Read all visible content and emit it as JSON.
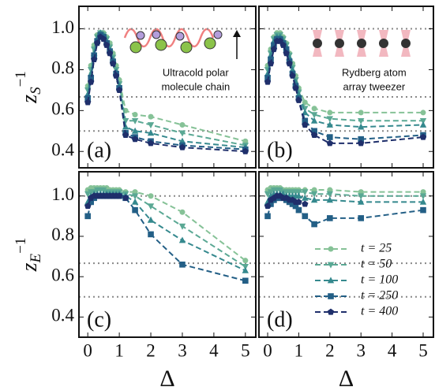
{
  "chart_data": [
    {
      "type": "line",
      "panel_label": "(a)",
      "ylabel": {
        "base": "z",
        "sub": "S",
        "sup": "−1"
      },
      "annotation": [
        "Ultracold polar",
        "molecule chain"
      ],
      "x": [
        0,
        0.1,
        0.2,
        0.3,
        0.4,
        0.5,
        0.6,
        0.7,
        0.8,
        0.9,
        1.0,
        1.2,
        1.5,
        2,
        3,
        5
      ],
      "xlim": [
        -0.28,
        5.33
      ],
      "xticks": [
        0,
        1,
        2,
        3,
        4,
        5
      ],
      "ylim": [
        0.32,
        1.11
      ],
      "yticks": [
        0.4,
        0.6,
        0.8,
        {
          "value": 1,
          "label": "1.0"
        }
      ],
      "hlines": [
        1,
        0.6667,
        0.5
      ],
      "series": [
        {
          "color": "#86c297",
          "marker": "circle",
          "values": [
            0.72,
            0.82,
            0.92,
            0.97,
            0.98,
            0.98,
            0.96,
            0.93,
            0.88,
            0.82,
            0.75,
            0.6,
            0.58,
            0.57,
            0.53,
            0.45
          ]
        },
        {
          "color": "#5aa894",
          "marker": "triangle-down",
          "values": [
            0.7,
            0.8,
            0.9,
            0.96,
            0.98,
            0.97,
            0.95,
            0.91,
            0.86,
            0.8,
            0.73,
            0.55,
            0.55,
            0.53,
            0.49,
            0.43
          ]
        },
        {
          "color": "#35898e",
          "marker": "triangle-up",
          "values": [
            0.68,
            0.78,
            0.88,
            0.95,
            0.98,
            0.97,
            0.94,
            0.9,
            0.85,
            0.79,
            0.72,
            0.52,
            0.5,
            0.49,
            0.45,
            0.42
          ]
        },
        {
          "color": "#235f86",
          "marker": "square",
          "values": [
            0.66,
            0.76,
            0.87,
            0.94,
            0.97,
            0.96,
            0.93,
            0.89,
            0.84,
            0.78,
            0.71,
            0.49,
            0.47,
            0.45,
            0.43,
            0.41
          ]
        },
        {
          "color": "#1f2f6b",
          "marker": "pentagon",
          "values": [
            0.64,
            0.74,
            0.85,
            0.93,
            0.96,
            0.95,
            0.92,
            0.88,
            0.83,
            0.77,
            0.7,
            0.48,
            0.46,
            0.44,
            0.42,
            0.4
          ]
        }
      ]
    },
    {
      "type": "line",
      "panel_label": "(b)",
      "annotation": [
        "Rydberg atom",
        "array tweezer"
      ],
      "x": [
        0,
        0.1,
        0.2,
        0.3,
        0.4,
        0.5,
        0.6,
        0.7,
        0.8,
        0.9,
        1.0,
        1.2,
        1.5,
        2,
        3,
        5
      ],
      "xlim": [
        -0.28,
        5.33
      ],
      "xticks": [
        0,
        1,
        2,
        3,
        4,
        5
      ],
      "ylim": [
        0.32,
        1.11
      ],
      "yticks": [
        0.4,
        0.6,
        0.8,
        1
      ],
      "hlines": [
        1,
        0.6667,
        0.5
      ],
      "series": [
        {
          "color": "#86c297",
          "marker": "circle",
          "values": [
            0.82,
            0.9,
            0.96,
            0.98,
            0.98,
            0.96,
            0.93,
            0.88,
            0.83,
            0.77,
            0.71,
            0.64,
            0.61,
            0.59,
            0.59,
            0.59
          ]
        },
        {
          "color": "#5aa894",
          "marker": "triangle-down",
          "values": [
            0.8,
            0.88,
            0.95,
            0.97,
            0.97,
            0.95,
            0.92,
            0.87,
            0.81,
            0.75,
            0.69,
            0.61,
            0.58,
            0.56,
            0.55,
            0.55
          ]
        },
        {
          "color": "#35898e",
          "marker": "triangle-up",
          "values": [
            0.78,
            0.87,
            0.94,
            0.96,
            0.96,
            0.94,
            0.91,
            0.86,
            0.8,
            0.74,
            0.68,
            0.59,
            0.55,
            0.53,
            0.52,
            0.53
          ]
        },
        {
          "color": "#235f86",
          "marker": "square",
          "values": [
            0.76,
            0.85,
            0.92,
            0.95,
            0.95,
            0.93,
            0.9,
            0.84,
            0.78,
            0.72,
            0.66,
            0.55,
            0.5,
            0.47,
            0.46,
            0.48
          ]
        },
        {
          "color": "#1f2f6b",
          "marker": "pentagon",
          "values": [
            0.74,
            0.83,
            0.9,
            0.94,
            0.94,
            0.92,
            0.88,
            0.83,
            0.77,
            0.71,
            0.65,
            0.53,
            0.48,
            0.44,
            0.44,
            0.47
          ]
        }
      ]
    },
    {
      "type": "line",
      "panel_label": "(c)",
      "ylabel": {
        "base": "z",
        "sub": "E",
        "sup": "−1"
      },
      "xlabel": "Δ",
      "x": [
        0,
        0.1,
        0.2,
        0.3,
        0.4,
        0.5,
        0.6,
        0.7,
        0.8,
        0.9,
        1.0,
        1.2,
        1.5,
        2,
        3,
        5
      ],
      "xlim": [
        -0.28,
        5.33
      ],
      "xticks": [
        0,
        1,
        2,
        3,
        4,
        5
      ],
      "ylim": [
        0.3,
        1.12
      ],
      "yticks": [
        0.4,
        0.6,
        0.8,
        {
          "value": 1,
          "label": "1.0"
        }
      ],
      "hlines": [
        1,
        0.6667,
        0.5
      ],
      "series": [
        {
          "color": "#86c297",
          "marker": "circle",
          "values": [
            1.03,
            1.04,
            1.04,
            1.04,
            1.04,
            1.04,
            1.04,
            1.03,
            1.03,
            1.03,
            1.03,
            1.02,
            1.02,
            1.0,
            0.92,
            0.68
          ]
        },
        {
          "color": "#5aa894",
          "marker": "triangle-down",
          "values": [
            1.01,
            1.02,
            1.02,
            1.03,
            1.03,
            1.03,
            1.02,
            1.02,
            1.02,
            1.02,
            1.02,
            1.01,
            1.0,
            0.95,
            0.85,
            0.65
          ]
        },
        {
          "color": "#35898e",
          "marker": "triangle-up",
          "values": [
            0.97,
            1.0,
            1.01,
            1.01,
            1.01,
            1.01,
            1.01,
            1.01,
            1.01,
            1.01,
            1.01,
            1.0,
            0.97,
            0.88,
            0.78,
            0.63
          ]
        },
        {
          "color": "#235f86",
          "marker": "square",
          "values": [
            0.9,
            0.97,
            0.99,
            1.0,
            1.0,
            1.0,
            1.0,
            1.0,
            1.0,
            1.0,
            1.0,
            0.99,
            0.93,
            0.81,
            0.66,
            0.58
          ]
        },
        {
          "color": "#1f2f6b",
          "marker": "pentagon",
          "values": [
            0.95,
            0.99,
            1.0,
            1.0,
            1.0,
            1.0,
            1.0,
            1.0,
            1.0,
            1.0,
            1.0,
            0.99,
            null,
            null,
            null,
            null
          ]
        }
      ]
    },
    {
      "type": "line",
      "panel_label": "(d)",
      "xlabel": "Δ",
      "legend": "lower right",
      "x": [
        0,
        0.1,
        0.2,
        0.3,
        0.4,
        0.5,
        0.6,
        0.7,
        0.8,
        0.9,
        1.0,
        1.2,
        1.5,
        2,
        3,
        5
      ],
      "xlim": [
        -0.28,
        5.33
      ],
      "xticks": [
        0,
        1,
        2,
        3,
        4,
        5
      ],
      "ylim": [
        0.3,
        1.12
      ],
      "yticks": [
        0.4,
        0.6,
        0.8,
        1
      ],
      "hlines": [
        1,
        0.6667,
        0.5
      ],
      "series": [
        {
          "name": "t = 25",
          "color": "#86c297",
          "marker": "circle",
          "values": [
            1.03,
            1.04,
            1.04,
            1.04,
            1.04,
            1.03,
            1.03,
            1.03,
            1.03,
            1.03,
            1.03,
            1.03,
            1.03,
            1.03,
            1.02,
            1.02
          ]
        },
        {
          "name": "t = 50",
          "color": "#5aa894",
          "marker": "triangle-down",
          "values": [
            1.01,
            1.02,
            1.03,
            1.03,
            1.03,
            1.02,
            1.02,
            1.02,
            1.02,
            1.02,
            1.02,
            1.02,
            1.01,
            1.01,
            1.0,
            1.0
          ]
        },
        {
          "name": "t = 100",
          "color": "#35898e",
          "marker": "triangle-up",
          "values": [
            0.97,
            1.0,
            1.01,
            1.01,
            1.01,
            1.01,
            1.0,
            1.0,
            1.0,
            1.0,
            1.0,
            0.99,
            0.98,
            0.98,
            0.97,
            0.97
          ]
        },
        {
          "name": "t = 250",
          "color": "#235f86",
          "marker": "square",
          "values": [
            0.9,
            0.96,
            0.98,
            0.99,
            0.99,
            0.99,
            0.98,
            0.97,
            0.96,
            0.95,
            0.93,
            0.9,
            0.86,
            0.89,
            0.89,
            0.93
          ]
        },
        {
          "name": "t = 400",
          "color": "#1f2f6b",
          "marker": "pentagon",
          "values": [
            0.95,
            0.98,
            0.99,
            1.0,
            1.0,
            0.99,
            0.99,
            0.98,
            0.98,
            0.97,
            0.97,
            0.96,
            null,
            null,
            null,
            null
          ]
        }
      ]
    }
  ]
}
